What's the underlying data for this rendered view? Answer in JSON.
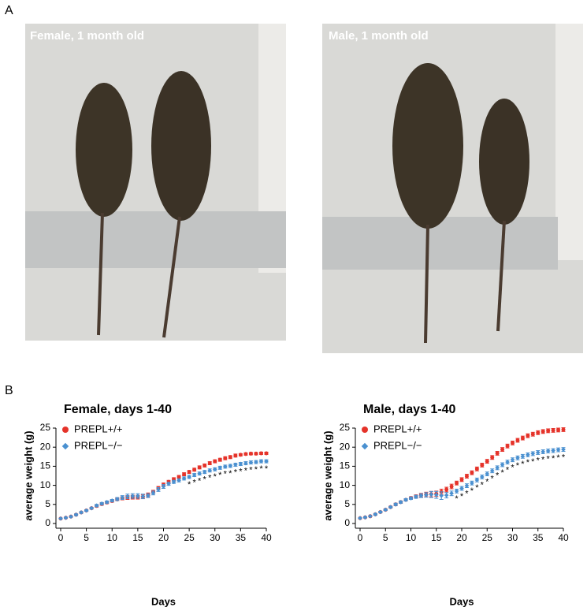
{
  "figure": {
    "panel_a": {
      "label": "A",
      "photos": [
        {
          "caption": "Female, 1 month old"
        },
        {
          "caption": "Male, 1 month old"
        }
      ]
    },
    "panel_b": {
      "label": "B"
    }
  },
  "chart_data": [
    {
      "type": "line",
      "title": "Female, days 1-40",
      "x_label": "Days",
      "y_label": "average weight (g)",
      "x": [
        0,
        1,
        2,
        3,
        4,
        5,
        6,
        7,
        8,
        9,
        10,
        11,
        12,
        13,
        14,
        15,
        16,
        17,
        18,
        19,
        20,
        21,
        22,
        23,
        24,
        25,
        26,
        27,
        28,
        29,
        30,
        31,
        32,
        33,
        34,
        35,
        36,
        37,
        38,
        39,
        40
      ],
      "xlim": [
        0,
        40
      ],
      "xticks": [
        0,
        5,
        10,
        15,
        20,
        25,
        30,
        35,
        40
      ],
      "ylim": [
        0,
        25
      ],
      "yticks": [
        0,
        5,
        10,
        15,
        20,
        25
      ],
      "series": [
        {
          "name": "PREPL+/+",
          "color": "#e5332a",
          "marker": "circle",
          "values": [
            1.3,
            1.5,
            1.8,
            2.3,
            2.9,
            3.4,
            4.0,
            4.6,
            5.1,
            5.5,
            5.9,
            6.3,
            6.6,
            6.8,
            6.9,
            6.9,
            7.0,
            7.5,
            8.3,
            9.3,
            10.2,
            10.9,
            11.6,
            12.2,
            12.9,
            13.5,
            14.1,
            14.7,
            15.2,
            15.8,
            16.3,
            16.7,
            17.1,
            17.4,
            17.8,
            18.0,
            18.2,
            18.3,
            18.3,
            18.4,
            18.4
          ],
          "errors": [
            0.1,
            0.1,
            0.1,
            0.2,
            0.2,
            0.2,
            0.2,
            0.3,
            0.3,
            0.3,
            0.3,
            0.3,
            0.4,
            0.5,
            0.5,
            0.5,
            0.5,
            0.5,
            0.4,
            0.4,
            0.4,
            0.4,
            0.4,
            0.4,
            0.4,
            0.4,
            0.4,
            0.4,
            0.4,
            0.4,
            0.4,
            0.4,
            0.4,
            0.4,
            0.4,
            0.3,
            0.3,
            0.3,
            0.3,
            0.3,
            0.3
          ]
        },
        {
          "name": "PREPL−/−",
          "color": "#4a90d0",
          "marker": "diamond",
          "values": [
            1.3,
            1.5,
            1.8,
            2.3,
            2.9,
            3.4,
            4.0,
            4.7,
            5.2,
            5.6,
            6.0,
            6.4,
            6.8,
            7.1,
            7.2,
            7.2,
            7.1,
            7.3,
            8.0,
            8.9,
            9.7,
            10.4,
            10.9,
            11.3,
            11.8,
            12.2,
            12.7,
            13.1,
            13.5,
            13.9,
            14.2,
            14.6,
            14.9,
            15.1,
            15.4,
            15.6,
            15.8,
            16.0,
            16.1,
            16.3,
            16.3
          ],
          "errors": [
            0.1,
            0.1,
            0.1,
            0.2,
            0.2,
            0.2,
            0.2,
            0.3,
            0.3,
            0.3,
            0.3,
            0.4,
            0.5,
            0.6,
            0.6,
            0.6,
            0.6,
            0.5,
            0.5,
            0.5,
            0.5,
            0.4,
            0.4,
            0.4,
            0.4,
            0.4,
            0.4,
            0.4,
            0.4,
            0.4,
            0.4,
            0.4,
            0.4,
            0.4,
            0.4,
            0.4,
            0.4,
            0.4,
            0.4,
            0.4,
            0.4
          ]
        }
      ],
      "significance_marker": "*",
      "significant_x": [
        25,
        26,
        27,
        28,
        29,
        30,
        31,
        32,
        33,
        34,
        35,
        36,
        37,
        38,
        39,
        40
      ]
    },
    {
      "type": "line",
      "title": "Male, days 1-40",
      "x_label": "Days",
      "y_label": "average weight (g)",
      "x": [
        0,
        1,
        2,
        3,
        4,
        5,
        6,
        7,
        8,
        9,
        10,
        11,
        12,
        13,
        14,
        15,
        16,
        17,
        18,
        19,
        20,
        21,
        22,
        23,
        24,
        25,
        26,
        27,
        28,
        29,
        30,
        31,
        32,
        33,
        34,
        35,
        36,
        37,
        38,
        39,
        40
      ],
      "xlim": [
        0,
        40
      ],
      "xticks": [
        0,
        5,
        10,
        15,
        20,
        25,
        30,
        35,
        40
      ],
      "ylim": [
        0,
        25
      ],
      "yticks": [
        0,
        5,
        10,
        15,
        20,
        25
      ],
      "series": [
        {
          "name": "PREPL+/+",
          "color": "#e5332a",
          "marker": "circle",
          "values": [
            1.4,
            1.6,
            1.9,
            2.4,
            3.0,
            3.6,
            4.3,
            5.0,
            5.6,
            6.2,
            6.7,
            7.1,
            7.4,
            7.6,
            7.7,
            7.8,
            8.3,
            8.9,
            9.7,
            10.6,
            11.5,
            12.4,
            13.3,
            14.3,
            15.3,
            16.3,
            17.3,
            18.4,
            19.4,
            20.3,
            21.1,
            21.8,
            22.4,
            23.0,
            23.4,
            23.8,
            24.1,
            24.3,
            24.4,
            24.5,
            24.6
          ],
          "errors": [
            0.1,
            0.1,
            0.1,
            0.2,
            0.2,
            0.2,
            0.2,
            0.3,
            0.3,
            0.3,
            0.3,
            0.4,
            0.5,
            0.6,
            0.7,
            0.7,
            0.7,
            0.6,
            0.6,
            0.5,
            0.5,
            0.5,
            0.5,
            0.5,
            0.5,
            0.5,
            0.5,
            0.5,
            0.5,
            0.5,
            0.5,
            0.5,
            0.5,
            0.5,
            0.5,
            0.5,
            0.5,
            0.5,
            0.5,
            0.5,
            0.5
          ]
        },
        {
          "name": "PREPL−/−",
          "color": "#4a90d0",
          "marker": "diamond",
          "values": [
            1.4,
            1.6,
            1.9,
            2.4,
            3.0,
            3.6,
            4.3,
            5.0,
            5.6,
            6.2,
            6.6,
            7.0,
            7.3,
            7.5,
            7.6,
            7.5,
            7.3,
            7.4,
            7.9,
            8.5,
            9.2,
            9.9,
            10.6,
            11.4,
            12.2,
            13.0,
            13.8,
            14.6,
            15.4,
            16.1,
            16.7,
            17.2,
            17.6,
            18.0,
            18.3,
            18.6,
            18.8,
            19.0,
            19.1,
            19.3,
            19.4
          ],
          "errors": [
            0.1,
            0.1,
            0.1,
            0.2,
            0.2,
            0.2,
            0.2,
            0.3,
            0.3,
            0.3,
            0.3,
            0.4,
            0.5,
            0.6,
            0.8,
            0.9,
            1.0,
            0.7,
            0.6,
            0.5,
            0.5,
            0.5,
            0.5,
            0.5,
            0.5,
            0.5,
            0.5,
            0.5,
            0.5,
            0.5,
            0.5,
            0.5,
            0.5,
            0.5,
            0.5,
            0.5,
            0.5,
            0.5,
            0.5,
            0.5,
            0.5
          ]
        }
      ],
      "significance_marker": "*",
      "significant_x": [
        19,
        20,
        21,
        22,
        23,
        24,
        25,
        26,
        27,
        28,
        29,
        30,
        31,
        32,
        33,
        34,
        35,
        36,
        37,
        38,
        39,
        40
      ]
    }
  ]
}
